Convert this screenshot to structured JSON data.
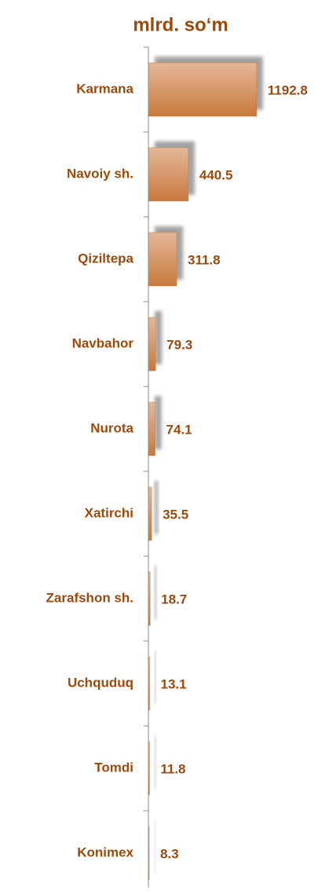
{
  "chart_data": {
    "type": "hbar",
    "title": "mlrd. so‘m",
    "categories": [
      "Karmana",
      "Navoiy sh.",
      "Qiziltepa",
      "Navbahor",
      "Nurota",
      "Xatirchi",
      "Zarafshon sh.",
      "Uchquduq",
      "Tomdi",
      "Konimex"
    ],
    "values": [
      1192.8,
      440.5,
      311.8,
      79.3,
      74.1,
      35.5,
      18.7,
      13.1,
      11.8,
      8.3
    ],
    "color": "#c87838",
    "xlim": [
      0,
      2000
    ]
  }
}
